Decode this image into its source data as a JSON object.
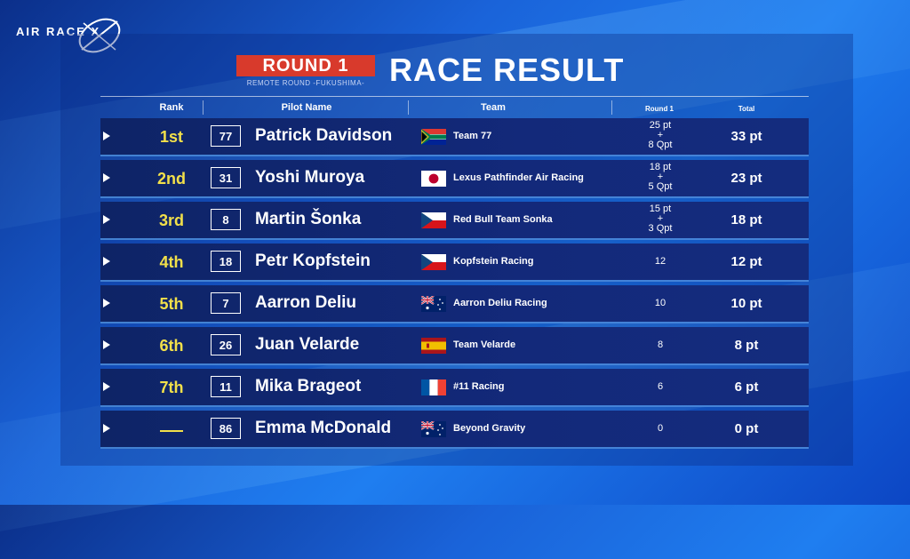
{
  "brand": {
    "logo_text": "AIR RACE X"
  },
  "header": {
    "round_label": "ROUND 1",
    "round_sub": "REMOTE ROUND -FUKUSHIMA-",
    "title": "RACE RESULT"
  },
  "columns": {
    "rank": "Rank",
    "pilot": "Pilot Name",
    "team": "Team",
    "round1": "Round 1",
    "total": "Total"
  },
  "colors": {
    "rank_yellow": "#f2e04a",
    "badge_red": "#d83a2c"
  },
  "rows": [
    {
      "rank": "1st",
      "number": "77",
      "pilot": "Patrick Davidson",
      "flag": "south-africa-flag",
      "team": "Team 77",
      "r1_line1": "25 pt",
      "r1_line2": "+",
      "r1_line3": "8 Qpt",
      "total": "33 pt"
    },
    {
      "rank": "2nd",
      "number": "31",
      "pilot": "Yoshi Muroya",
      "flag": "japan-flag",
      "team": "Lexus Pathfinder Air Racing",
      "r1_line1": "18 pt",
      "r1_line2": "+",
      "r1_line3": "5 Qpt",
      "total": "23 pt"
    },
    {
      "rank": "3rd",
      "number": "8",
      "pilot": "Martin Šonka",
      "flag": "czech-flag",
      "team": "Red Bull Team Sonka",
      "r1_line1": "15 pt",
      "r1_line2": "+",
      "r1_line3": "3 Qpt",
      "total": "18 pt"
    },
    {
      "rank": "4th",
      "number": "18",
      "pilot": "Petr Kopfstein",
      "flag": "czech-flag",
      "team": "Kopfstein Racing",
      "r1_line1": "12",
      "total": "12 pt"
    },
    {
      "rank": "5th",
      "number": "7",
      "pilot": "Aarron Deliu",
      "flag": "australia-flag",
      "team": "Aarron Deliu Racing",
      "r1_line1": "10",
      "total": "10 pt"
    },
    {
      "rank": "6th",
      "number": "26",
      "pilot": "Juan Velarde",
      "flag": "spain-flag",
      "team": "Team Velarde",
      "r1_line1": "8",
      "total": "8 pt"
    },
    {
      "rank": "7th",
      "number": "11",
      "pilot": "Mika Brageot",
      "flag": "france-flag",
      "team": "#11 Racing",
      "r1_line1": "6",
      "total": "6 pt"
    },
    {
      "rank": "",
      "number": "86",
      "pilot": "Emma McDonald",
      "flag": "australia-flag",
      "team": "Beyond Gravity",
      "r1_line1": "0",
      "total": "0 pt"
    }
  ]
}
